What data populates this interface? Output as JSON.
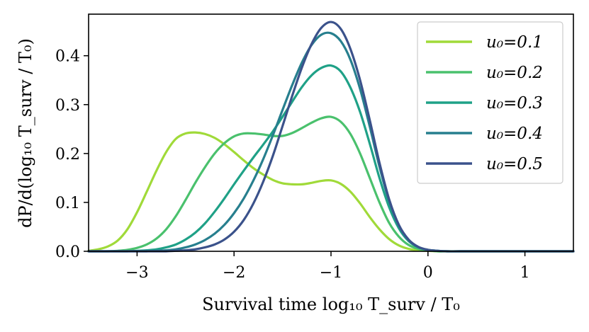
{
  "chart_data": {
    "type": "line",
    "xlabel": "Survival time  log₁₀ T_surv / T₀",
    "ylabel": "dP/d(log₁₀ T_surv / T₀)",
    "xlim": [
      -3.5,
      1.5
    ],
    "ylim": [
      0.0,
      0.485
    ],
    "xticks": [
      -3,
      -2,
      -1,
      0,
      1
    ],
    "yticks": [
      0.0,
      0.1,
      0.2,
      0.3,
      0.4
    ],
    "xtick_labels": [
      "−3",
      "−2",
      "−1",
      "0",
      "1"
    ],
    "ytick_labels": [
      "0.0",
      "0.1",
      "0.2",
      "0.3",
      "0.4"
    ],
    "grid": false,
    "legend_position": "top-right",
    "x": [
      -3.5,
      -3.4,
      -3.3,
      -3.2,
      -3.1,
      -3.0,
      -2.9,
      -2.8,
      -2.7,
      -2.6,
      -2.5,
      -2.4,
      -2.3,
      -2.2,
      -2.1,
      -2.0,
      -1.9,
      -1.8,
      -1.7,
      -1.6,
      -1.5,
      -1.4,
      -1.3,
      -1.2,
      -1.1,
      -1.0,
      -0.9,
      -0.8,
      -0.7,
      -0.6,
      -0.5,
      -0.4,
      -0.3,
      -0.2,
      -0.1,
      0.0,
      0.1,
      0.2,
      0.4,
      0.6,
      0.8,
      1.0,
      1.5
    ],
    "series": [
      {
        "name": "u₀=0.1",
        "color": "#a0da39",
        "values": [
          0.001,
          0.004,
          0.01,
          0.022,
          0.045,
          0.08,
          0.122,
          0.165,
          0.203,
          0.23,
          0.241,
          0.243,
          0.24,
          0.232,
          0.219,
          0.203,
          0.186,
          0.17,
          0.157,
          0.146,
          0.139,
          0.137,
          0.137,
          0.14,
          0.144,
          0.145,
          0.138,
          0.122,
          0.098,
          0.07,
          0.045,
          0.025,
          0.012,
          0.005,
          0.002,
          0.001,
          0.0,
          0.0,
          0.0,
          0.0,
          0.0,
          0.0,
          0.0
        ]
      },
      {
        "name": "u₀=0.2",
        "color": "#4ac16d",
        "values": [
          0.0,
          0.0,
          0.0,
          0.001,
          0.003,
          0.007,
          0.014,
          0.026,
          0.045,
          0.072,
          0.105,
          0.14,
          0.172,
          0.2,
          0.221,
          0.235,
          0.241,
          0.241,
          0.239,
          0.236,
          0.236,
          0.242,
          0.252,
          0.263,
          0.272,
          0.275,
          0.265,
          0.24,
          0.2,
          0.15,
          0.1,
          0.058,
          0.03,
          0.013,
          0.005,
          0.002,
          0.0,
          0.0,
          0.0,
          0.0,
          0.0,
          0.0,
          0.0
        ]
      },
      {
        "name": "u₀=0.3",
        "color": "#1fa187",
        "values": [
          0.0,
          0.0,
          0.0,
          0.0,
          0.0,
          0.001,
          0.002,
          0.004,
          0.008,
          0.014,
          0.024,
          0.038,
          0.057,
          0.081,
          0.108,
          0.137,
          0.165,
          0.192,
          0.218,
          0.245,
          0.275,
          0.306,
          0.336,
          0.36,
          0.375,
          0.38,
          0.368,
          0.335,
          0.285,
          0.22,
          0.15,
          0.09,
          0.047,
          0.021,
          0.008,
          0.003,
          0.001,
          0.0,
          0.0,
          0.0,
          0.0,
          0.0,
          0.0
        ]
      },
      {
        "name": "u₀=0.4",
        "color": "#277f8e",
        "values": [
          0.0,
          0.0,
          0.0,
          0.0,
          0.0,
          0.0,
          0.0,
          0.001,
          0.002,
          0.004,
          0.008,
          0.014,
          0.023,
          0.036,
          0.054,
          0.078,
          0.108,
          0.145,
          0.188,
          0.237,
          0.289,
          0.34,
          0.386,
          0.422,
          0.443,
          0.446,
          0.43,
          0.392,
          0.332,
          0.255,
          0.173,
          0.102,
          0.052,
          0.023,
          0.009,
          0.003,
          0.001,
          0.0,
          0.0,
          0.0,
          0.0,
          0.0,
          0.0
        ]
      },
      {
        "name": "u₀=0.5",
        "color": "#3b528b",
        "values": [
          0.0,
          0.0,
          0.0,
          0.0,
          0.0,
          0.0,
          0.0,
          0.0,
          0.0,
          0.001,
          0.002,
          0.004,
          0.008,
          0.014,
          0.024,
          0.04,
          0.064,
          0.098,
          0.142,
          0.195,
          0.256,
          0.318,
          0.376,
          0.424,
          0.457,
          0.469,
          0.455,
          0.414,
          0.35,
          0.268,
          0.181,
          0.106,
          0.054,
          0.024,
          0.009,
          0.003,
          0.001,
          0.0,
          0.0,
          0.0,
          0.0,
          0.0,
          0.0
        ]
      }
    ]
  }
}
